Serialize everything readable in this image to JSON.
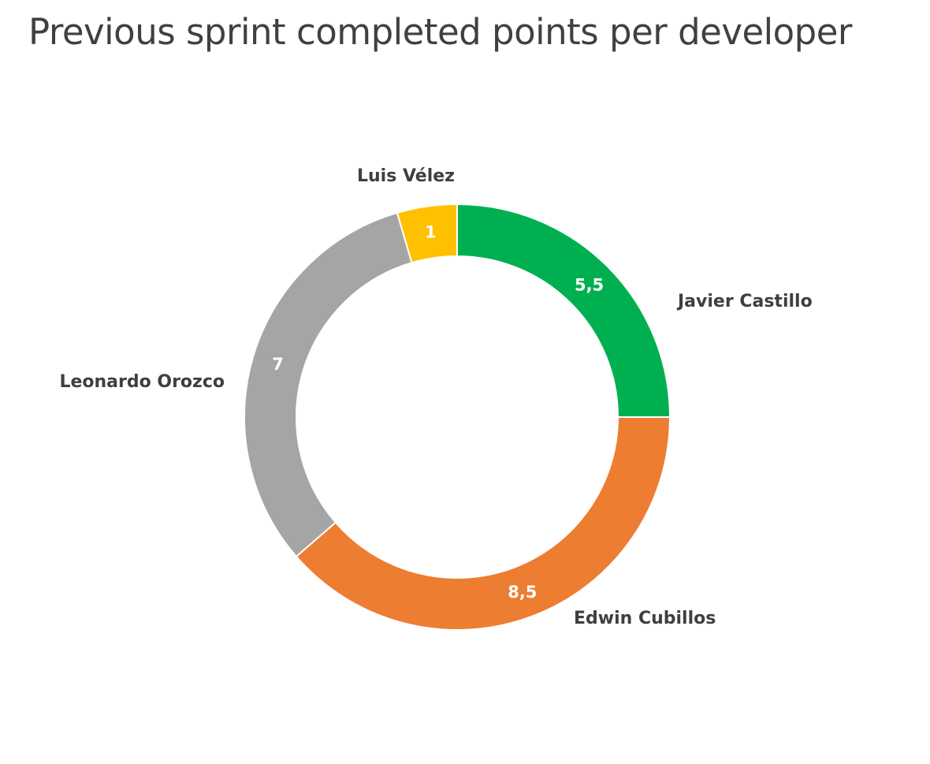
{
  "chart_data": {
    "type": "pie",
    "variant": "donut",
    "title": "Previous sprint completed points per developer",
    "categories": [
      "Javier Castillo",
      "Edwin Cubillos",
      "Leonardo Orozco",
      "Luis Vélez"
    ],
    "values": [
      5.5,
      8.5,
      7,
      1
    ],
    "value_labels": [
      "5,5",
      "8,5",
      "7",
      "1"
    ],
    "colors": [
      "#00b050",
      "#ed7d31",
      "#a5a5a5",
      "#ffc000"
    ],
    "start_angle": "12 o'clock",
    "direction": "clockwise",
    "legend": "none"
  }
}
